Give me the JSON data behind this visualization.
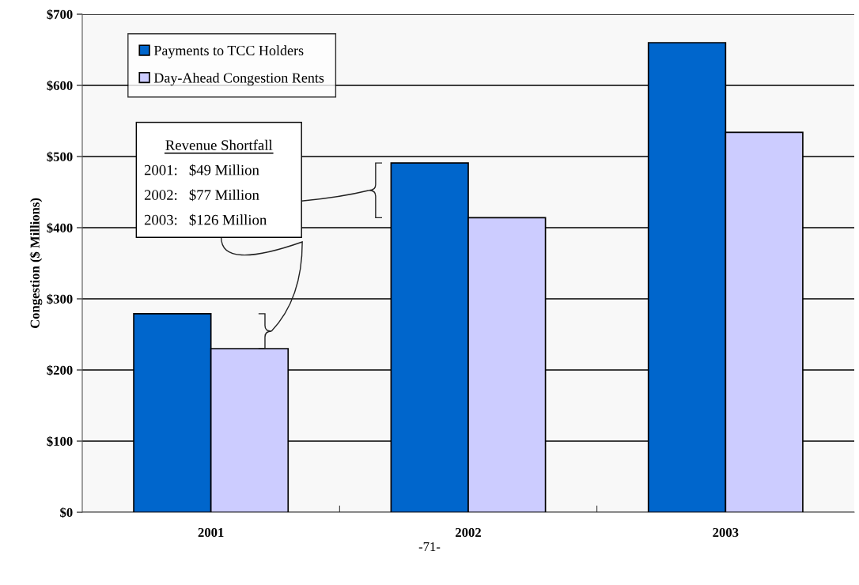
{
  "chart_data": {
    "type": "bar",
    "ylabel": "Congestion ($ Millions)",
    "categories": [
      "2001",
      "2002",
      "2003"
    ],
    "series": [
      {
        "name": "Payments to TCC Holders",
        "color": "#0066cc",
        "values": [
          279,
          491,
          660
        ]
      },
      {
        "name": "Day-Ahead Congestion Rents",
        "color": "#ccccff",
        "values": [
          230,
          414,
          534
        ]
      }
    ],
    "ylim": [
      0,
      700
    ],
    "yticks": [
      {
        "value": 0,
        "label": "$0"
      },
      {
        "value": 100,
        "label": "$100"
      },
      {
        "value": 200,
        "label": "$200"
      },
      {
        "value": 300,
        "label": "$300"
      },
      {
        "value": 400,
        "label": "$400"
      },
      {
        "value": 500,
        "label": "$500"
      },
      {
        "value": 600,
        "label": "$600"
      },
      {
        "value": 700,
        "label": "$700"
      }
    ],
    "grid": "y",
    "legend": "top left",
    "annotations": [
      "Revenue Shortfall",
      "2001:   $49 Million",
      "2002:   $77 Million",
      "2003:   $126 Million",
      "-71-"
    ]
  }
}
